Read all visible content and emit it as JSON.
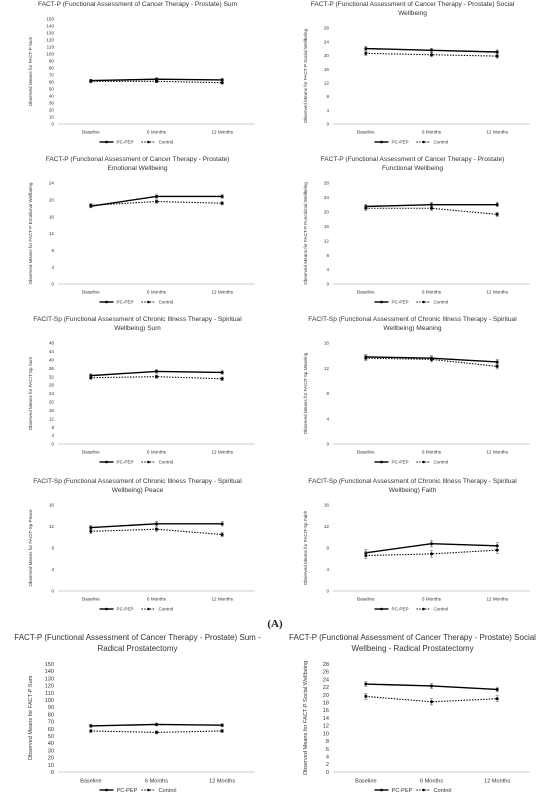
{
  "caption": "(A)",
  "legend": {
    "pcpep": "PC-PEP",
    "control": "Control"
  },
  "colors": {
    "line": "#000000",
    "axis": "#bfbfbf",
    "text": "#333333"
  },
  "chart_data": [
    {
      "type": "line",
      "title": "FACT-P (Functional Assessment of Cancer Therapy - Prostate) Sum",
      "ylabel": "Observed Means for FACT-P Sum",
      "categories": [
        "Baseline",
        "6 Months",
        "12 Months"
      ],
      "ylim": [
        0,
        150
      ],
      "yticks": [
        0,
        10,
        20,
        30,
        40,
        50,
        60,
        70,
        80,
        90,
        100,
        110,
        120,
        130,
        140,
        150
      ],
      "grid": false,
      "legend": "bottom",
      "series": [
        {
          "name": "PC-PEP",
          "style": "solid",
          "values": [
            62,
            64,
            63
          ],
          "errors": [
            2,
            2,
            2
          ]
        },
        {
          "name": "Control",
          "style": "dotted",
          "values": [
            61,
            61,
            59
          ],
          "errors": [
            2,
            2,
            2
          ]
        }
      ]
    },
    {
      "type": "line",
      "title": "FACT-P (Functional Assessment of Cancer Therapy - Prostate) Social\nWellbeing",
      "ylabel": "Observed Means for FACT-P Social Wellbeing",
      "categories": [
        "Baseline",
        "6 Months",
        "12 Months"
      ],
      "ylim": [
        0,
        28
      ],
      "yticks": [
        0,
        4,
        8,
        12,
        16,
        20,
        24,
        28
      ],
      "grid": false,
      "legend": "bottom",
      "series": [
        {
          "name": "PC-PEP",
          "style": "solid",
          "values": [
            22,
            21.5,
            21
          ],
          "errors": [
            0.6,
            0.6,
            0.6
          ]
        },
        {
          "name": "Control",
          "style": "dotted",
          "values": [
            20.6,
            20.2,
            19.8
          ],
          "errors": [
            0.6,
            0.6,
            0.6
          ]
        }
      ]
    },
    {
      "type": "line",
      "title": "FACT-P (Functional Assessment of Cancer Therapy - Prostate)\nEmotional Wellbeing",
      "ylabel": "Observed Means for FACT-P Emotional Wellbeing",
      "categories": [
        "Baseline",
        "6 Months",
        "12 Months"
      ],
      "ylim": [
        0,
        24
      ],
      "yticks": [
        0,
        4,
        8,
        12,
        16,
        20,
        24
      ],
      "grid": false,
      "legend": "bottom",
      "series": [
        {
          "name": "PC-PEP",
          "style": "solid",
          "values": [
            18.5,
            20.8,
            20.8
          ],
          "errors": [
            0.4,
            0.4,
            0.4
          ]
        },
        {
          "name": "Control",
          "style": "dotted",
          "values": [
            18.7,
            19.6,
            19.2
          ],
          "errors": [
            0.4,
            0.4,
            0.4
          ]
        }
      ]
    },
    {
      "type": "line",
      "title": "FACT-P (Functional Assessment of Cancer Therapy - Prostate)\nFunctional Wellbeing",
      "ylabel": "Observed Means for FACT-P Functional Wellbeing",
      "categories": [
        "Baseline",
        "6 Months",
        "12 Months"
      ],
      "ylim": [
        0,
        28
      ],
      "yticks": [
        0,
        4,
        8,
        12,
        16,
        20,
        24,
        28
      ],
      "grid": false,
      "legend": "bottom",
      "series": [
        {
          "name": "PC-PEP",
          "style": "solid",
          "values": [
            21.5,
            22,
            22
          ],
          "errors": [
            0.6,
            0.6,
            0.6
          ]
        },
        {
          "name": "Control",
          "style": "dotted",
          "values": [
            21,
            21,
            19.3
          ],
          "errors": [
            0.6,
            0.6,
            0.6
          ]
        }
      ]
    },
    {
      "type": "line",
      "title": "FACIT-Sp (Functional Assessment of Chronic Illness Therapy - Spiritual\nWellbeing) Sum",
      "ylabel": "Observed Means for FACIT-Sp Sum",
      "categories": [
        "Baseline",
        "6 Months",
        "12 Months"
      ],
      "ylim": [
        0,
        48
      ],
      "yticks": [
        0,
        4,
        8,
        12,
        16,
        20,
        24,
        28,
        32,
        36,
        40,
        44,
        48
      ],
      "grid": false,
      "legend": "bottom",
      "series": [
        {
          "name": "PC-PEP",
          "style": "solid",
          "values": [
            32.5,
            34.5,
            34
          ],
          "errors": [
            0.8,
            0.8,
            0.8
          ]
        },
        {
          "name": "Control",
          "style": "dotted",
          "values": [
            31.5,
            32,
            31
          ],
          "errors": [
            0.8,
            0.8,
            0.8
          ]
        }
      ]
    },
    {
      "type": "line",
      "title": "FACIT-Sp (Functional Assessment of Chronic Illness Therapy - Spiritual\nWellbeing) Meaning",
      "ylabel": "Observed Means for FACIT-Sp Meaning",
      "categories": [
        "Baseline",
        "6 Months",
        "12 Months"
      ],
      "ylim": [
        0,
        16
      ],
      "yticks": [
        0,
        4,
        8,
        12,
        16
      ],
      "grid": false,
      "legend": "bottom",
      "series": [
        {
          "name": "PC-PEP",
          "style": "solid",
          "values": [
            13.8,
            13.6,
            13
          ],
          "errors": [
            0.4,
            0.4,
            0.4
          ]
        },
        {
          "name": "Control",
          "style": "dotted",
          "values": [
            13.6,
            13.4,
            12.3
          ],
          "errors": [
            0.4,
            0.4,
            0.4
          ]
        }
      ]
    },
    {
      "type": "line",
      "title": "FACIT-Sp (Functional Assessment of Chronic Illness Therapy - Spiritual\nWellbeing) Peace",
      "ylabel": "Observed Means for FACIT-Sp Peace",
      "categories": [
        "Baseline",
        "6 Months",
        "12 Months"
      ],
      "ylim": [
        0,
        16
      ],
      "yticks": [
        0,
        4,
        8,
        12,
        16
      ],
      "grid": false,
      "legend": "bottom",
      "series": [
        {
          "name": "PC-PEP",
          "style": "solid",
          "values": [
            11.8,
            12.5,
            12.5
          ],
          "errors": [
            0.4,
            0.4,
            0.4
          ]
        },
        {
          "name": "Control",
          "style": "dotted",
          "values": [
            11.1,
            11.5,
            10.5
          ],
          "errors": [
            0.4,
            0.4,
            0.4
          ]
        }
      ]
    },
    {
      "type": "line",
      "title": "FACIT-Sp (Functional Assessment of Chronic Illness Therapy - Spiritual\nWellbeing) Faith",
      "ylabel": "Observed Means for FACIT-Sp Faith",
      "categories": [
        "Baseline",
        "6 Months",
        "12 Months"
      ],
      "ylim": [
        0,
        16
      ],
      "yticks": [
        0,
        4,
        8,
        12,
        16
      ],
      "grid": false,
      "legend": "bottom",
      "series": [
        {
          "name": "PC-PEP",
          "style": "solid",
          "values": [
            7.1,
            8.8,
            8.4
          ],
          "errors": [
            0.6,
            0.6,
            0.6
          ]
        },
        {
          "name": "Control",
          "style": "dotted",
          "values": [
            6.6,
            6.9,
            7.6
          ],
          "errors": [
            0.6,
            0.6,
            0.6
          ]
        }
      ]
    },
    {
      "type": "line",
      "title": "FACT-P (Functional Assessment of Cancer Therapy - Prostate) Sum -\nRadical Prostatectomy",
      "ylabel": "Observed Means for FACT-P Sum",
      "categories": [
        "Baseline",
        "6 Months",
        "12 Months"
      ],
      "ylim": [
        0,
        150
      ],
      "yticks": [
        0,
        10,
        20,
        30,
        40,
        50,
        60,
        70,
        80,
        90,
        100,
        110,
        120,
        130,
        140,
        150
      ],
      "grid": false,
      "legend": "bottom",
      "series": [
        {
          "name": "PC-PEP",
          "style": "solid",
          "values": [
            64,
            66,
            65
          ],
          "errors": [
            2,
            2,
            2
          ]
        },
        {
          "name": "Control",
          "style": "dotted",
          "values": [
            57,
            55,
            57
          ],
          "errors": [
            2,
            2,
            2
          ]
        }
      ]
    },
    {
      "type": "line",
      "title": "FACT-P (Functional Assessment of Cancer Therapy - Prostate) Social\nWellbeing - Radical Prostatectomy",
      "ylabel": "Observed Means for FACT-P Social Wellbeing",
      "categories": [
        "Baseline",
        "6 Months",
        "12 Months"
      ],
      "ylim": [
        0,
        28
      ],
      "yticks": [
        0,
        2,
        4,
        6,
        8,
        10,
        12,
        14,
        16,
        18,
        20,
        22,
        24,
        26,
        28
      ],
      "grid": false,
      "legend": "bottom",
      "series": [
        {
          "name": "PC-PEP",
          "style": "solid",
          "values": [
            22.8,
            22.3,
            21.4
          ],
          "errors": [
            0.6,
            0.6,
            0.6
          ]
        },
        {
          "name": "Control",
          "style": "dotted",
          "values": [
            19.6,
            18.2,
            19
          ],
          "errors": [
            0.8,
            0.8,
            0.8
          ]
        }
      ]
    }
  ]
}
